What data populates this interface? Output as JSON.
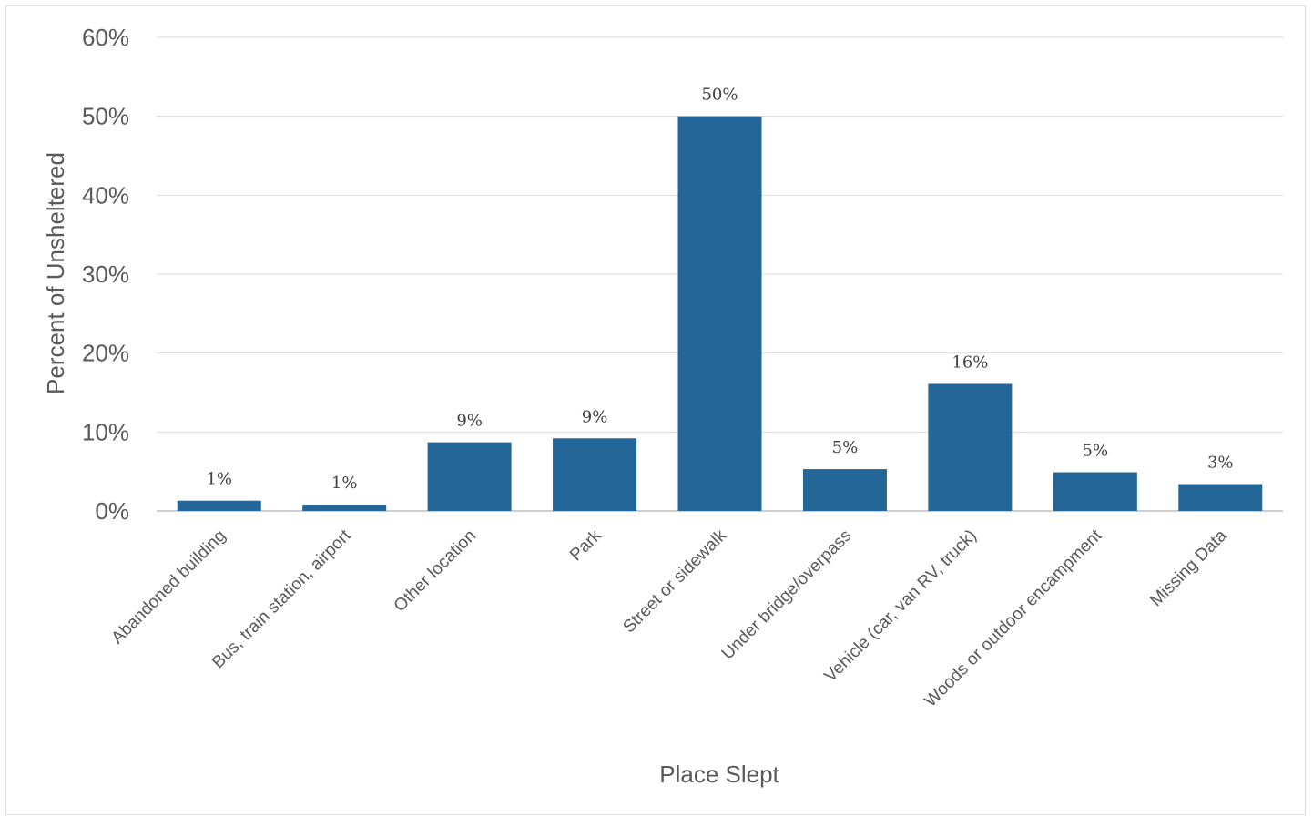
{
  "chart_data": {
    "type": "bar",
    "title": "",
    "xlabel": "Place Slept",
    "ylabel": "Percent of Unsheltered",
    "ylim": [
      0,
      60
    ],
    "yticks": [
      "0%",
      "10%",
      "20%",
      "30%",
      "40%",
      "50%",
      "60%"
    ],
    "grid": true,
    "categories": [
      "Abandoned building",
      "Bus, train station, airport",
      "Other location",
      "Park",
      "Street or sidewalk",
      "Under bridge/overpass",
      "Vehicle (car, van RV, truck)",
      "Woods or outdoor encampment",
      "Missing Data"
    ],
    "values": [
      1.3,
      0.8,
      8.7,
      9.2,
      50,
      5.3,
      16.1,
      4.9,
      3.4
    ],
    "data_labels": [
      "1%",
      "1%",
      "9%",
      "9%",
      "50%",
      "5%",
      "16%",
      "5%",
      "3%"
    ],
    "colors": {
      "bar": "#236697",
      "gridline": "#d9d9d9",
      "axis": "#bfbfbf"
    }
  }
}
